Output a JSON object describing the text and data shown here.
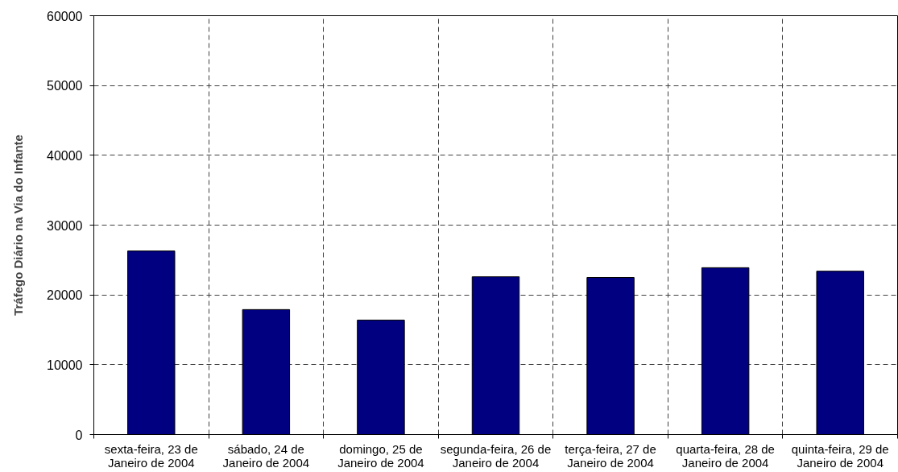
{
  "chart_data": {
    "type": "bar",
    "ylabel": "Tráfego Diário na Via do Infante",
    "categories": [
      "sexta-feira, 23 de Janeiro de 2004",
      "sábado, 24 de Janeiro de 2004",
      "domingo, 25 de Janeiro de 2004",
      "segunda-feira, 26 de Janeiro de 2004",
      "terça-feira, 27 de Janeiro de 2004",
      "quarta-feira, 28 de Janeiro de 2004",
      "quinta-feira, 29 de Janeiro de 2004"
    ],
    "values": [
      26300,
      17900,
      16400,
      22600,
      22500,
      23900,
      23400
    ],
    "color": "#000080",
    "ylim": [
      0,
      60000
    ],
    "yticks": [
      0,
      10000,
      20000,
      30000,
      40000,
      50000,
      60000
    ],
    "grid": true
  }
}
